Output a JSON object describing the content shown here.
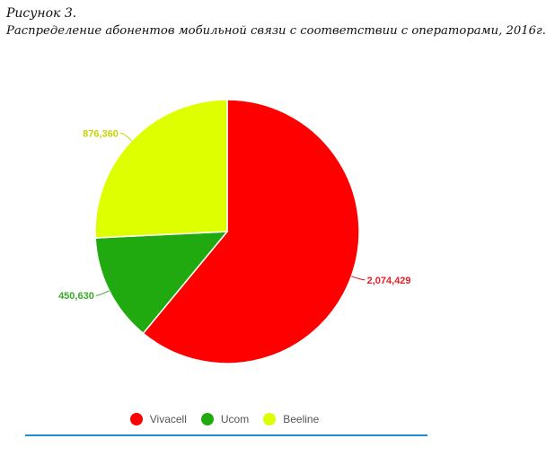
{
  "caption": {
    "line1": "Рисунок 3.",
    "line2": "Распределение абонентов мобильной связи с соответствии с операторами, 2016г."
  },
  "chart_data": {
    "type": "pie",
    "categories": [
      "Vivacell",
      "Ucom",
      "Beeline"
    ],
    "values": [
      2074429,
      450630,
      876360
    ],
    "labels": [
      "2,074,429",
      "450,630",
      "876,360"
    ],
    "colors": [
      "#ff0000",
      "#21aa0f",
      "#ddff00"
    ],
    "label_colors": [
      "#e8202a",
      "#3aa928",
      "#c8d400"
    ],
    "legend": "bottom"
  },
  "legend": {
    "items": [
      {
        "label": "Vivacell",
        "color": "#ff0000"
      },
      {
        "label": "Ucom",
        "color": "#21aa0f"
      },
      {
        "label": "Beeline",
        "color": "#ddff00"
      }
    ]
  }
}
